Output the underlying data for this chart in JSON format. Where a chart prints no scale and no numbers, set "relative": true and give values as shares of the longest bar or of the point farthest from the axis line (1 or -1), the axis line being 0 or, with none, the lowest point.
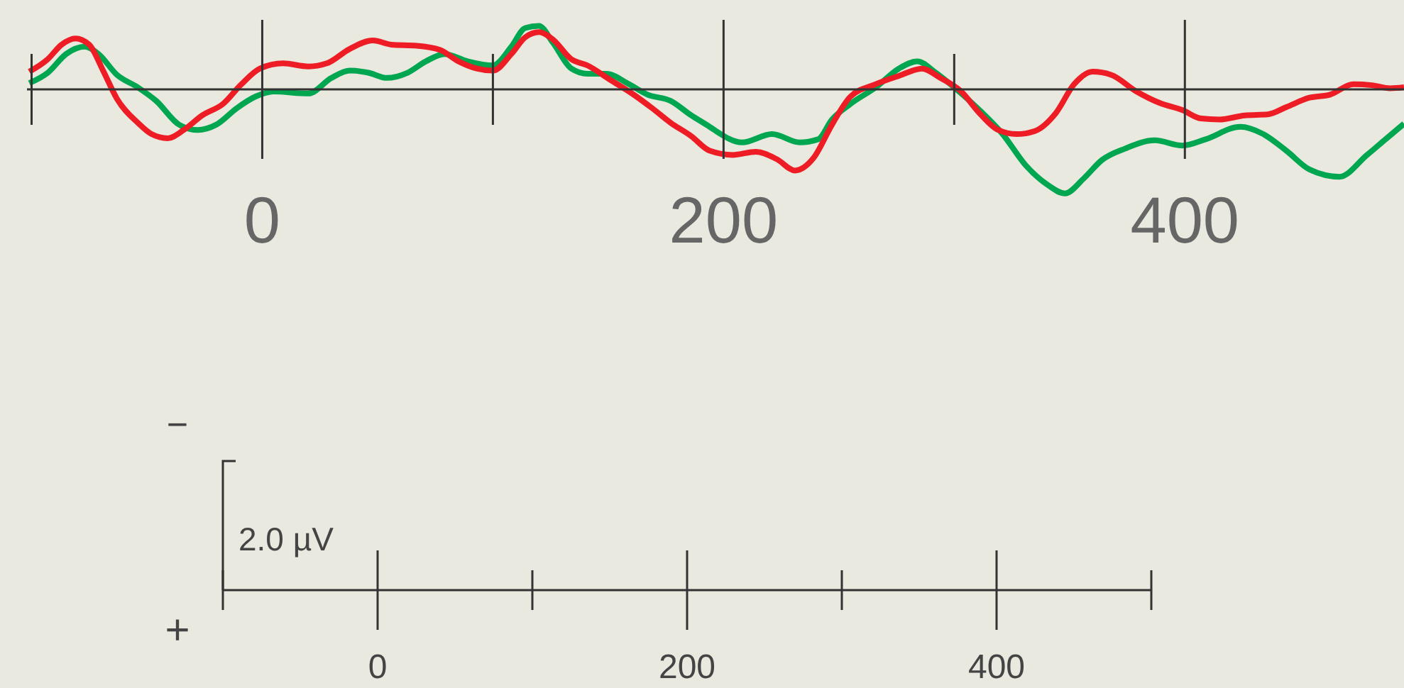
{
  "chart_data": [
    {
      "type": "line",
      "relative": true,
      "grid": "x",
      "xlim": [
        -102,
        495
      ],
      "xticks": [
        0,
        200,
        400
      ],
      "series": [
        {
          "color": "#00a650",
          "x": [
            -101,
            -93,
            -85,
            -77,
            -71,
            -63,
            -54,
            -46,
            -36,
            -28,
            -20,
            -11,
            -3,
            5,
            20,
            30,
            38,
            46,
            54,
            63,
            71,
            79,
            89,
            100,
            108,
            114,
            120,
            126,
            134,
            141,
            149,
            159,
            167,
            177,
            186,
            194,
            196,
            208,
            221,
            233,
            241,
            247,
            255,
            266,
            276,
            284,
            292,
            301,
            311,
            321,
            331,
            340,
            348,
            356,
            364,
            374,
            387,
            399,
            409,
            424,
            434,
            444,
            454,
            467,
            479,
            487,
            495
          ],
          "values": [
            0.06,
            0.16,
            0.34,
            0.41,
            0.34,
            0.14,
            0.02,
            -0.11,
            -0.34,
            -0.39,
            -0.34,
            -0.18,
            -0.07,
            -0.02,
            -0.04,
            0.11,
            0.18,
            0.16,
            0.11,
            0.16,
            0.27,
            0.34,
            0.27,
            0.23,
            0.41,
            0.59,
            0.61,
            0.45,
            0.2,
            0.15,
            0.15,
            0.05,
            -0.05,
            -0.11,
            -0.25,
            -0.36,
            -0.39,
            -0.51,
            -0.43,
            -0.51,
            -0.48,
            -0.29,
            -0.14,
            0.02,
            0.2,
            0.27,
            0.16,
            0,
            -0.2,
            -0.43,
            -0.73,
            -0.91,
            -1,
            -0.86,
            -0.68,
            -0.57,
            -0.49,
            -0.54,
            -0.48,
            -0.36,
            -0.43,
            -0.59,
            -0.77,
            -0.84,
            -0.63,
            -0.48,
            -0.33
          ]
        },
        {
          "color": "#ee1c25",
          "x": [
            -101,
            -93,
            -87,
            -81,
            -75,
            -69,
            -63,
            -54,
            -48,
            -41,
            -34,
            -26,
            -17,
            -9,
            -1,
            9,
            20,
            28,
            38,
            48,
            56,
            67,
            77,
            85,
            93,
            100,
            108,
            114,
            120,
            126,
            134,
            141,
            151,
            161,
            169,
            177,
            186,
            194,
            204,
            214,
            223,
            231,
            239,
            247,
            255,
            266,
            276,
            286,
            294,
            303,
            311,
            319,
            327,
            335,
            344,
            352,
            360,
            368,
            379,
            389,
            399,
            407,
            415,
            426,
            436,
            444,
            454,
            463,
            473,
            481,
            489,
            495
          ],
          "values": [
            0.17,
            0.29,
            0.43,
            0.49,
            0.43,
            0.18,
            -0.09,
            -0.32,
            -0.43,
            -0.47,
            -0.39,
            -0.25,
            -0.14,
            0.05,
            0.2,
            0.25,
            0.22,
            0.25,
            0.39,
            0.47,
            0.43,
            0.42,
            0.38,
            0.27,
            0.2,
            0.18,
            0.34,
            0.5,
            0.55,
            0.48,
            0.29,
            0.23,
            0.09,
            -0.05,
            -0.18,
            -0.32,
            -0.45,
            -0.59,
            -0.63,
            -0.6,
            -0.67,
            -0.78,
            -0.66,
            -0.34,
            -0.07,
            0.05,
            0.13,
            0.2,
            0.11,
            -0.02,
            -0.23,
            -0.39,
            -0.43,
            -0.4,
            -0.23,
            0.05,
            0.17,
            0.14,
            -0.02,
            -0.13,
            -0.2,
            -0.28,
            -0.29,
            -0.25,
            -0.24,
            -0.17,
            -0.08,
            -0.05,
            0.05,
            0.04,
            0.01,
            0.02
          ]
        }
      ]
    },
    {
      "type": "other",
      "ylabel": "2.0 µV",
      "annotations": [
        "−",
        "+",
        "0",
        "200",
        "400"
      ]
    }
  ]
}
